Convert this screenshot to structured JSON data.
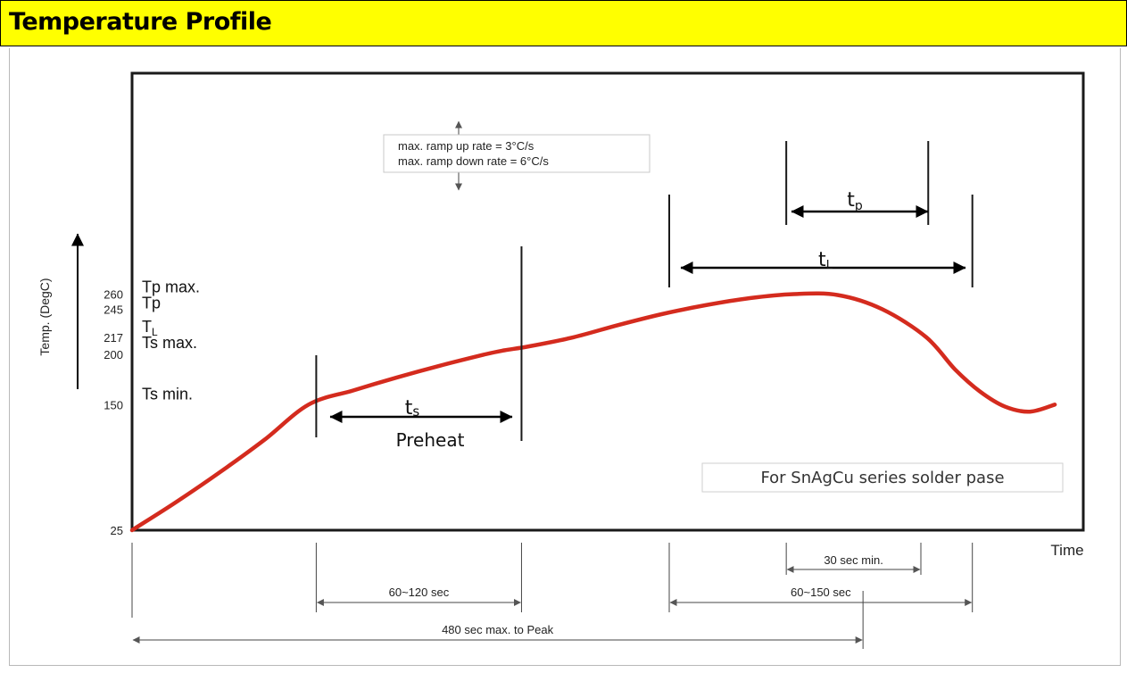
{
  "header": {
    "title": "Temperature Profile",
    "bg_color": "#ffff00"
  },
  "chart_data": {
    "type": "line",
    "ylabel": "Temp. (DegC)",
    "xlabel": "Time",
    "y_ticks": [
      25,
      150,
      200,
      217,
      245,
      260
    ],
    "temp_labels": [
      {
        "text": "Tp max.",
        "value": 260
      },
      {
        "text": "Tp",
        "value": 245
      },
      {
        "text": "TL",
        "value": 217
      },
      {
        "text": "Ts max.",
        "value": 200
      },
      {
        "text": "Ts min.",
        "value": 150
      }
    ],
    "series": [
      {
        "color": "#d42b1e",
        "x": [
          0,
          23,
          46,
          69,
          92,
          115,
          138,
          161,
          184,
          194,
          207,
          230,
          253,
          276,
          299,
          322,
          345,
          368,
          391,
          414,
          429,
          442,
          455,
          468,
          481
        ],
        "y": [
          25,
          53,
          83,
          115,
          150,
          164,
          177,
          189,
          200,
          204,
          208,
          217,
          229,
          240,
          249,
          256,
          260,
          259,
          245,
          217,
          185,
          163,
          148,
          143,
          150
        ]
      }
    ],
    "ramp_note": [
      "max. ramp up rate = 3°C/s",
      "max. ramp down rate = 6°C/s"
    ],
    "intervals": [
      {
        "label": "ts",
        "sub": "Preheat"
      },
      {
        "label": "tL"
      },
      {
        "label": "tp"
      }
    ],
    "time_spans": [
      "60~120 sec",
      "60~150 sec",
      "30 sec min.",
      "480 sec max. to Peak"
    ],
    "annotation": "For SnAgCu series solder pase",
    "guide_colors": {
      "ts": "#f0a060",
      "tl": "#9cd35c",
      "tp": "#8a8ae0",
      "peak": "#4bc4e0"
    }
  }
}
